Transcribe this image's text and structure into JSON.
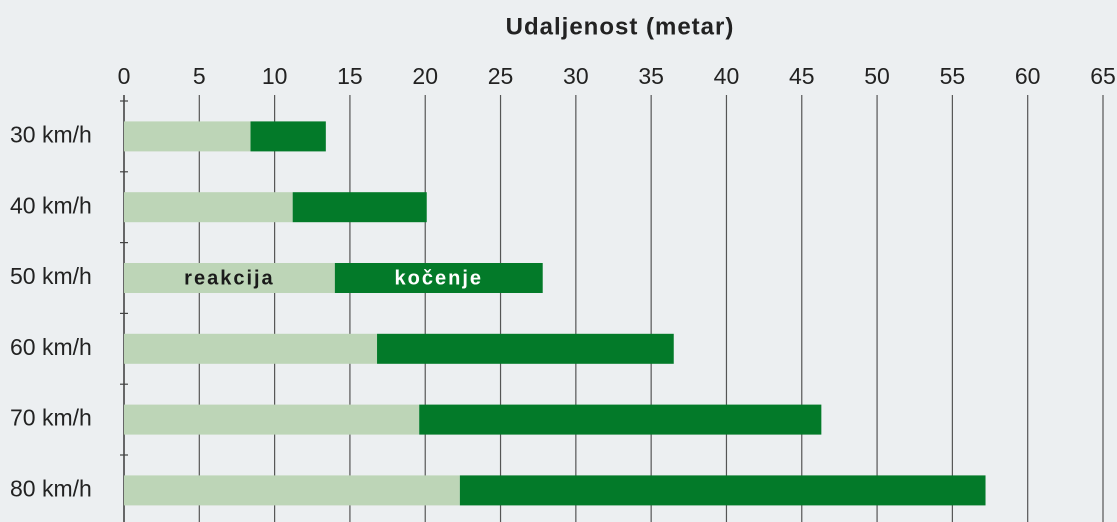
{
  "chart_data": {
    "type": "stacked_barh",
    "title": "Udaljenost (metar)",
    "categories": [
      "30 km/h",
      "40 km/h",
      "50 km/h",
      "60 km/h",
      "70 km/h",
      "80 km/h"
    ],
    "series": [
      {
        "name": "reakcija",
        "color": "#bdd5b7",
        "values": [
          8.4,
          11.2,
          14.0,
          16.8,
          19.6,
          22.3
        ]
      },
      {
        "name": "kočenje",
        "color": "#037a29",
        "values": [
          5.0,
          8.9,
          13.8,
          19.7,
          26.7,
          34.9
        ]
      }
    ],
    "label_category": 2,
    "xlim": [
      0,
      65
    ],
    "xticks": [
      0,
      5,
      10,
      15,
      20,
      25,
      30,
      35,
      40,
      45,
      50,
      55,
      60,
      65
    ],
    "grid": true
  }
}
